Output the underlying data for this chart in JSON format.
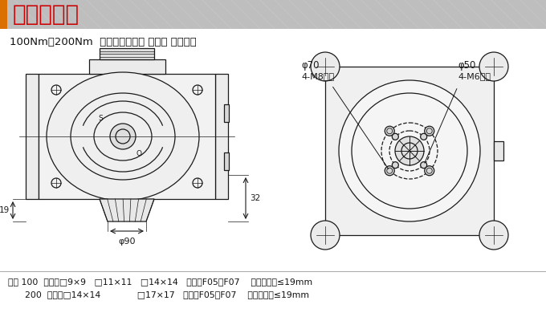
{
  "title_text": "安装示意图",
  "title_bg_color": "#BEBEBE",
  "title_bar_color": "#D97000",
  "title_text_color": "#CC0000",
  "bg_color": "#FFFFFF",
  "subtitle": "100Nm、200Nm  防爆电动执行器 直装式 外形尺寸",
  "line_color": "#1A1A1A",
  "footer_line1": "参数 100  四方：□9×9   □11×11   □14×14   法兰：F05、F07    阀杆：高度≤19mm",
  "footer_line2": "      200  四方：□14×14             □17×17   法兰：F05、F07    阀杆：高度≤19mm",
  "annot_phi70": "φ70",
  "annot_4m8": "4-M8均布",
  "annot_phi50": "φ50",
  "annot_4m6": "4-M6均布",
  "annot_phi90": "φ90",
  "annot_19": "19",
  "annot_32": "32"
}
